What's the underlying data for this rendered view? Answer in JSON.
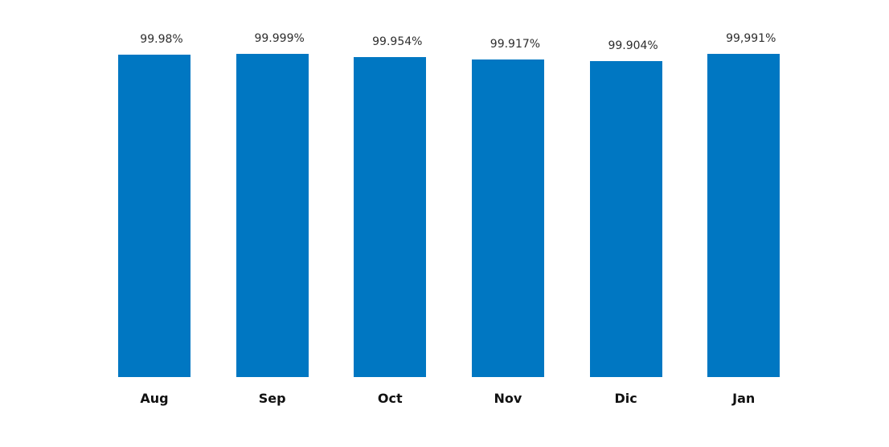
{
  "chart_data": {
    "type": "bar",
    "title": "",
    "xlabel": "",
    "ylabel": "",
    "categories": [
      "Aug",
      "Sep",
      "Oct",
      "Nov",
      "Dic",
      "Jan"
    ],
    "values": [
      99.98,
      99.999,
      99.954,
      99.917,
      99.904,
      99.991
    ],
    "data_labels": [
      "99.98%",
      "99.999%",
      "99.954%",
      "99.917%",
      "99.904%",
      "99,991%"
    ],
    "ylim": [
      95.75,
      100.1
    ],
    "grid": false,
    "legend_position": "none",
    "bar_color": "#0077c2",
    "data_label_color": "#2e2e2e",
    "axis_label_color": "#111111",
    "background": "#ffffff"
  }
}
